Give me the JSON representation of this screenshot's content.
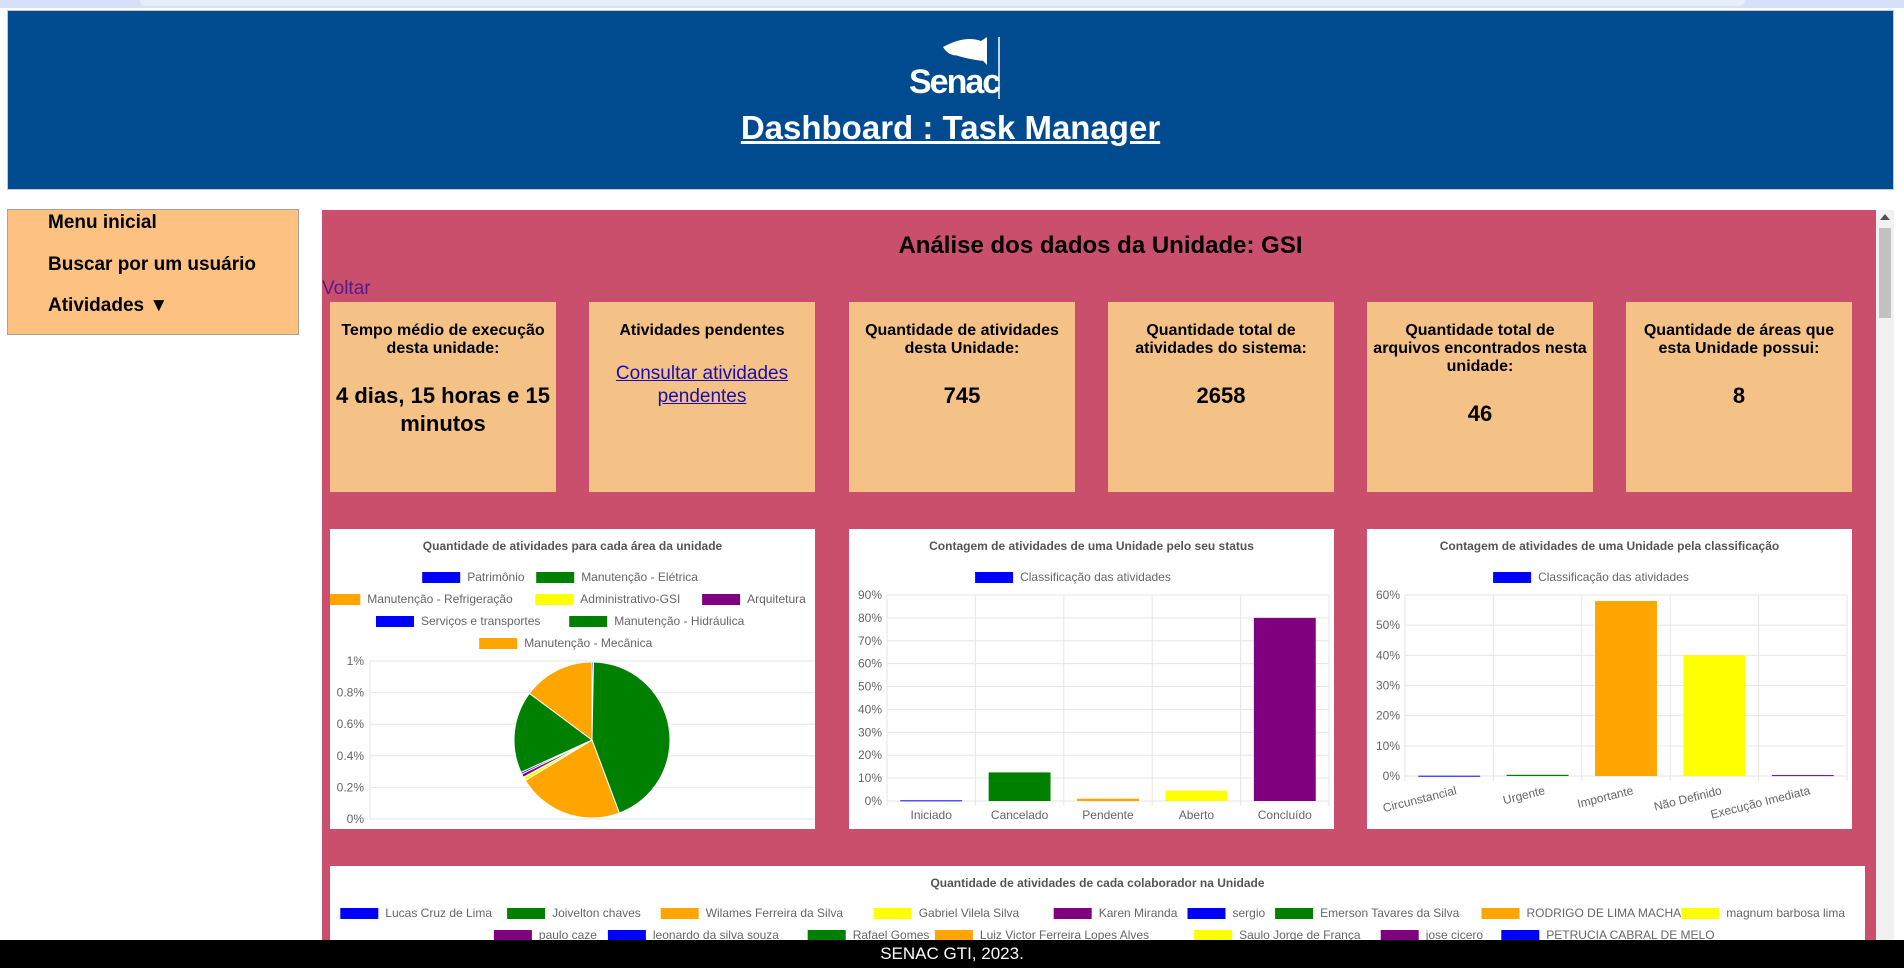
{
  "header": {
    "logo_text": "Senac",
    "title": "Dashboard : Task Manager",
    "colors": {
      "background": "#004a8f"
    }
  },
  "sidebar": {
    "items": [
      {
        "label": "Menu inicial"
      },
      {
        "label": "Buscar por um usuário"
      },
      {
        "label": "Atividades ▼"
      }
    ]
  },
  "main": {
    "title": "Análise dos dados da Unidade: GSI",
    "back_link": "Voltar",
    "cards": [
      {
        "label": "Tempo médio de execução desta unidade:",
        "value": "4 dias, 15 horas e 15 minutos"
      },
      {
        "label": "Atividades pendentes",
        "link": "Consultar atividades pendentes"
      },
      {
        "label": "Quantidade de atividades desta Unidade:",
        "value": "745"
      },
      {
        "label": "Quantidade total de atividades do sistema:",
        "value": "2658"
      },
      {
        "label": "Quantidade total de arquivos encontrados nesta unidade:",
        "value": "46"
      },
      {
        "label": "Quantidade de áreas que esta Unidade possui:",
        "value": "8"
      }
    ]
  },
  "chart_data": [
    {
      "type": "pie",
      "title": "Quantidade de atividades para cada área da unidade",
      "legend_position": "top",
      "legend": [
        {
          "name": "Patrimônio",
          "color": "#0000ff"
        },
        {
          "name": "Manutenção - Elétrica",
          "color": "#008000"
        },
        {
          "name": "Manutenção - Refrigeração",
          "color": "#ffa500"
        },
        {
          "name": "Administrativo-GSI",
          "color": "#ffff00"
        },
        {
          "name": "Arquitetura",
          "color": "#800080"
        },
        {
          "name": "Serviços e transportes",
          "color": "#0000ff"
        },
        {
          "name": "Manutenção - Hidráulica",
          "color": "#008000"
        },
        {
          "name": "Manutenção - Mecânica",
          "color": "#ffa500"
        }
      ],
      "y_ticks": [
        "1%",
        "0.8%",
        "0.6%",
        "0.4%",
        "0.2%",
        "0%"
      ],
      "slices": [
        {
          "name": "Patrimônio",
          "value": 0.3,
          "color": "#0000ff"
        },
        {
          "name": "Manutenção - Elétrica",
          "value": 44,
          "color": "#008000"
        },
        {
          "name": "Manutenção - Refrigeração",
          "value": 22,
          "color": "#ffa500"
        },
        {
          "name": "Administrativo-GSI",
          "value": 0.8,
          "color": "#ffff00"
        },
        {
          "name": "Arquitetura",
          "value": 0.7,
          "color": "#800080"
        },
        {
          "name": "Serviços e transportes",
          "value": 0.4,
          "color": "#0000ff"
        },
        {
          "name": "Manutenção - Hidráulica",
          "value": 17,
          "color": "#008000"
        },
        {
          "name": "Manutenção - Mecânica",
          "value": 14.8,
          "color": "#ffa500"
        }
      ]
    },
    {
      "type": "bar",
      "title": "Contagem de atividades de uma Unidade pelo seu status",
      "legend_position": "top",
      "series": [
        {
          "name": "Classificação das atividades",
          "color": "#0000ff"
        }
      ],
      "categories": [
        "Iniciado",
        "Cancelado",
        "Pendente",
        "Aberto",
        "Concluído"
      ],
      "values": [
        0.3,
        12.5,
        1,
        4.5,
        80
      ],
      "colors": [
        "#0000ff",
        "#008000",
        "#ffa500",
        "#ffff00",
        "#800080"
      ],
      "ylim": [
        0,
        90
      ],
      "y_ticks": [
        0,
        10,
        20,
        30,
        40,
        50,
        60,
        70,
        80,
        90
      ],
      "y_suffix": "%",
      "grid": true
    },
    {
      "type": "bar",
      "title": "Contagem de atividades de uma Unidade pela classificação",
      "legend_position": "top",
      "series": [
        {
          "name": "Classificação das atividades",
          "color": "#0000ff"
        }
      ],
      "categories": [
        "Circunstancial",
        "Urgente",
        "Importante",
        "Não Definido",
        "Execução Imediata"
      ],
      "values": [
        0.1,
        0.4,
        58,
        40,
        0.3
      ],
      "colors": [
        "#0000ff",
        "#008000",
        "#ffa500",
        "#ffff00",
        "#800080"
      ],
      "ylim": [
        0,
        60
      ],
      "y_ticks": [
        0,
        10,
        20,
        30,
        40,
        50,
        60
      ],
      "y_suffix": "%",
      "grid": true,
      "rotated_labels": true
    },
    {
      "type": "bar",
      "title": "Quantidade de atividades de cada colaborador na Unidade",
      "legend_position": "top",
      "legend": [
        {
          "name": "Lucas Cruz de Lima",
          "color": "#0000ff"
        },
        {
          "name": "Joivelton chaves",
          "color": "#008000"
        },
        {
          "name": "Wilames Ferreira da Silva",
          "color": "#ffa500"
        },
        {
          "name": "Gabriel Vilela Silva",
          "color": "#ffff00"
        },
        {
          "name": "Karen Miranda",
          "color": "#800080"
        },
        {
          "name": "sergio",
          "color": "#0000ff"
        },
        {
          "name": "Emerson Tavares da Silva",
          "color": "#008000"
        },
        {
          "name": "RODRIGO DE LIMA MACHADO",
          "color": "#ffa500"
        },
        {
          "name": "magnum barbosa lima",
          "color": "#ffff00"
        },
        {
          "name": "paulo caze",
          "color": "#800080"
        },
        {
          "name": "leonardo da silva souza",
          "color": "#0000ff"
        },
        {
          "name": "Rafael Gomes",
          "color": "#008000"
        },
        {
          "name": "Luiz Victor Ferreira Lopes Alves",
          "color": "#ffa500"
        },
        {
          "name": "Saulo Jorge de França",
          "color": "#ffff00"
        },
        {
          "name": "jose cicero",
          "color": "#800080"
        },
        {
          "name": "PETRUCIA CABRAL DE MELO",
          "color": "#0000ff"
        }
      ]
    }
  ],
  "footer": {
    "text": "SENAC GTI, 2023."
  }
}
